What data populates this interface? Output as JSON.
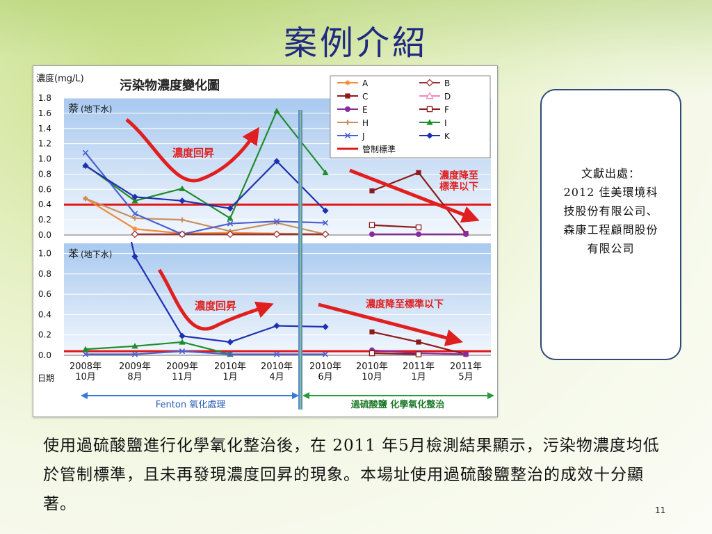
{
  "slide": {
    "title": "案例介紹",
    "reference": "文獻出處：\n2012 佳美環境科技股份有限公司、森康工程顧問股份有限公司",
    "body": "使用過硫酸鹽進行化學氧化整治後，在 2011 年5月檢測結果顯示，污染物濃度均低於管制標準，且未再發現濃度回昇的現象。本場址使用過硫酸鹽整治的成效十分顯著。",
    "page_number": "11"
  },
  "chart_data": {
    "type": "line",
    "title": "污染物濃度變化圖",
    "ylabel": "濃度(mg/L)",
    "xlabel": "日期",
    "x": [
      "2008年\n10月",
      "2009年\n8月",
      "2009年\n11月",
      "2010年\n1月",
      "2010年\n4月",
      "2010年\n6月",
      "2010年\n10月",
      "2011年\n1月",
      "2011年\n5月"
    ],
    "phases": [
      {
        "label": "Fenton 氧化處理",
        "from": 0,
        "to": 5,
        "color": "#3a78d8"
      },
      {
        "label": "過硫酸鹽 化學氧化整治",
        "from": 5,
        "to": 8,
        "color": "#2a9a3a"
      }
    ],
    "legend": [
      {
        "key": "A",
        "color": "#f08c3a",
        "marker": "star"
      },
      {
        "key": "B",
        "color": "#a03030",
        "marker": "diamond-open"
      },
      {
        "key": "C",
        "color": "#8b1a1a",
        "marker": "square"
      },
      {
        "key": "D",
        "color": "#f088b8",
        "marker": "triangle-open"
      },
      {
        "key": "E",
        "color": "#8a2aa0",
        "marker": "circle"
      },
      {
        "key": "F",
        "color": "#8b1a1a",
        "marker": "square-open"
      },
      {
        "key": "H",
        "color": "#c89060",
        "marker": "plus"
      },
      {
        "key": "I",
        "color": "#1e8c2a",
        "marker": "triangle"
      },
      {
        "key": "J",
        "color": "#4a60d0",
        "marker": "x"
      },
      {
        "key": "K",
        "color": "#1f30b0",
        "marker": "diamond"
      }
    ],
    "standard_label": "管制標準",
    "standard_color": "#e01818",
    "panels": [
      {
        "label": "萘",
        "sublabel": "(地下水)",
        "ylim": [
          0,
          1.8
        ],
        "yticks": [
          "1.8",
          "1.6",
          "1.4",
          "1.2",
          "1.0",
          "0.8",
          "0.6",
          "0.4",
          "0.2",
          "0.0"
        ],
        "standard": 0.4,
        "series": [
          {
            "key": "A",
            "x": [
              0,
              1,
              2,
              3,
              4,
              5
            ],
            "values": [
              0.48,
              0.08,
              0.02,
              0.03,
              0.02,
              0.01
            ]
          },
          {
            "key": "H",
            "x": [
              0,
              1,
              2,
              3,
              4,
              5
            ],
            "values": [
              0.48,
              0.22,
              0.2,
              0.05,
              0.16,
              0.01
            ]
          },
          {
            "key": "I",
            "x": [
              0,
              1,
              2,
              3,
              4,
              5
            ],
            "values": [
              0.92,
              0.45,
              0.61,
              0.22,
              1.63,
              0.82
            ]
          },
          {
            "key": "J",
            "x": [
              0,
              1,
              2,
              3,
              4,
              5
            ],
            "values": [
              1.08,
              0.28,
              0.01,
              0.15,
              0.18,
              0.16
            ]
          },
          {
            "key": "K",
            "x": [
              0,
              1,
              2,
              3,
              4,
              5
            ],
            "values": [
              0.91,
              0.5,
              0.45,
              0.35,
              0.97,
              0.32
            ]
          },
          {
            "key": "B",
            "x": [
              1,
              2,
              3,
              4,
              5
            ],
            "values": [
              0.01,
              0.01,
              0.01,
              0.01,
              0.01
            ]
          },
          {
            "key": "C",
            "x": [
              6,
              7,
              8
            ],
            "values": [
              0.58,
              0.82,
              0.02
            ]
          },
          {
            "key": "F",
            "x": [
              6,
              7
            ],
            "values": [
              0.13,
              0.1
            ]
          },
          {
            "key": "E",
            "x": [
              6,
              7,
              8
            ],
            "values": [
              0.01,
              0.01,
              0.01
            ]
          }
        ],
        "annotations": [
          {
            "text": "濃度回昇",
            "color": "#e02020"
          },
          {
            "text": "濃度降至\n標準以下",
            "color": "#e02020"
          }
        ]
      },
      {
        "label": "苯",
        "sublabel": "(地下水)",
        "ylim": [
          0,
          1.1
        ],
        "yticks": [
          "1.0",
          "0.8",
          "0.6",
          "0.4",
          "0.2",
          "0.0"
        ],
        "standard": 0.04,
        "series": [
          {
            "key": "I",
            "x": [
              0,
              1,
              2,
              3
            ],
            "values": [
              0.06,
              0.09,
              0.13,
              0.01
            ]
          },
          {
            "key": "J",
            "x": [
              0,
              1,
              2,
              3,
              4,
              5
            ],
            "values": [
              0.01,
              0.01,
              0.04,
              0.01,
              0.01,
              0.01
            ]
          },
          {
            "key": "K",
            "x": [
              1,
              2,
              3,
              4,
              5
            ],
            "values": [
              0.97,
              0.19,
              0.13,
              0.29,
              0.28
            ]
          },
          {
            "key": "C",
            "x": [
              6,
              7,
              8
            ],
            "values": [
              0.23,
              0.13,
              0.01
            ]
          },
          {
            "key": "E",
            "x": [
              6,
              7,
              8
            ],
            "values": [
              0.05,
              0.02,
              0.01
            ]
          },
          {
            "key": "F",
            "x": [
              6,
              7
            ],
            "values": [
              0.02,
              0.01
            ]
          }
        ],
        "annotations": [
          {
            "text": "濃度回昇",
            "color": "#e02020"
          },
          {
            "text": "濃度降至標準以下",
            "color": "#e02020"
          }
        ]
      }
    ]
  }
}
